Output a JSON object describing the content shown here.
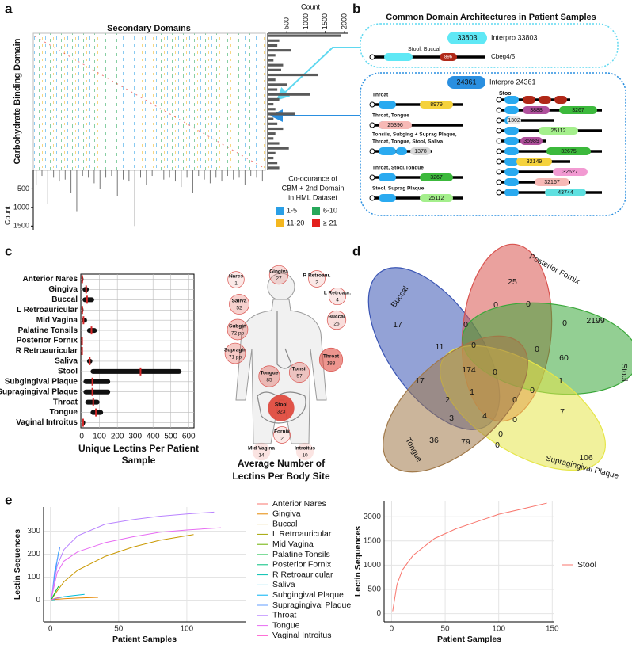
{
  "panel_labels": [
    "a",
    "b",
    "c",
    "d",
    "e"
  ],
  "panel_a": {
    "title": "Secondary Domains",
    "y_label": "Carbohydrate Binding Domain",
    "top_count_label": "Count",
    "top_ticks": [
      500,
      1000,
      1500,
      2000
    ],
    "top_lim": [
      0,
      2100
    ],
    "right_counts": [
      1900,
      300,
      250,
      600,
      200,
      150,
      400,
      350,
      1300,
      200,
      500,
      250,
      1100,
      300,
      150,
      200,
      700,
      150,
      250,
      400,
      200,
      150,
      300,
      550,
      200,
      150,
      250,
      300
    ],
    "bottom_count_label": "Count",
    "bottom_ticks": [
      500,
      1000,
      1500
    ],
    "bottom_lim": [
      0,
      1600
    ],
    "bottom_counts": [
      400,
      150,
      900,
      200,
      300,
      250,
      600,
      1100,
      150,
      200,
      350,
      500,
      200,
      150,
      700,
      250,
      300,
      1500,
      200,
      400,
      150,
      800,
      250,
      200,
      300,
      450,
      200,
      600,
      150,
      250,
      350,
      200,
      300,
      150,
      250,
      200,
      400,
      150,
      200,
      300
    ],
    "legend_title_lines": [
      "Co-ocurance of",
      "CBM + 2nd Domain",
      "in HML Dataset"
    ],
    "legend": [
      {
        "label": "1-5",
        "color": "#2a9fe6"
      },
      {
        "label": "6-10",
        "color": "#27a85a"
      },
      {
        "label": "11-20",
        "color": "#f4b71f"
      },
      {
        "label": "≥ 21",
        "color": "#e3201c"
      }
    ]
  },
  "panel_b": {
    "title": "Common Domain Architectures in Patient Samples",
    "group1": {
      "id": "33803",
      "name": "Interpro 33803",
      "sites": "Stool, Buccal",
      "domain": "896",
      "gene": "Cbeg4/5"
    },
    "group2": {
      "id": "24361",
      "name": "Interpro 24361",
      "left": [
        {
          "sites": [
            "Throat"
          ],
          "domain": "8979",
          "color": "#f5d23c"
        },
        {
          "sites": [
            "Throat, Tongue"
          ],
          "domain": "25396",
          "color": "#f7b9b6"
        },
        {
          "sites": [
            "Tonsils, Subging + Suprag Plaque,",
            "Throat, Tongue, Stool, Saliva"
          ],
          "domain": "1378",
          "color": "#d9d9d9"
        },
        {
          "sites": [
            "Throat, Stool,Tongue"
          ],
          "domain": "3267",
          "color": "#3cb93c"
        },
        {
          "sites": [
            "Stool, Suprag Plaque"
          ],
          "domain": "25112",
          "color": "#a4ef8c"
        }
      ],
      "right_title": "Stool",
      "right": [
        {
          "domain": "3888",
          "color": "#b0509c"
        },
        {
          "domain": "3267",
          "color": "#3cb93c"
        },
        {
          "domain": "1302",
          "color": "#e8e8e8"
        },
        {
          "domain": "25112",
          "color": "#a4ef8c"
        },
        {
          "domain": "35989",
          "color": "#b0509c"
        },
        {
          "domain": "32675",
          "color": "#3cb93c"
        },
        {
          "domain": "32149",
          "color": "#f5d23c"
        },
        {
          "domain": "32627",
          "color": "#f29ad2"
        },
        {
          "domain": "32167",
          "color": "#f7b9b6"
        },
        {
          "domain": "43744",
          "color": "#5fe0e0"
        }
      ]
    }
  },
  "body_map": {
    "caption_lines": [
      "Average Number of",
      "Lectins Per Body Site"
    ],
    "sites": [
      "Nares",
      "Gingiva",
      "R Retroaur.",
      "L Retroaur.",
      "Saliva",
      "Buccal",
      "Subgin",
      "Supragin",
      "Throat",
      "Tongue",
      "Tonsil",
      "Stool",
      "Fornix",
      "Mid Vagina",
      "Introitus"
    ],
    "values": [
      1,
      27,
      2,
      4,
      52,
      26,
      72,
      71,
      183,
      85,
      57,
      323,
      2,
      14,
      10
    ],
    "value_labels": [
      "1",
      "27",
      "2",
      "4",
      "52",
      "26",
      "72 pp",
      "71 pp",
      "183",
      "85",
      "57",
      "323",
      "2",
      "14",
      "10"
    ]
  },
  "venn": {
    "sets": [
      "Buccal",
      "Posterior Fornix",
      "Stool",
      "Supragingival Plaque",
      "Tongue"
    ],
    "colors": [
      "#3a55b4",
      "#d9534f",
      "#3aa83a",
      "#e6e64a",
      "#a07848"
    ],
    "regions": [
      25,
      17,
      2199,
      106,
      36,
      0,
      0,
      0,
      0,
      11,
      0,
      174,
      0,
      60,
      17,
      0,
      0,
      1,
      2,
      1,
      0,
      7,
      3,
      4,
      0,
      79,
      0,
      0
    ]
  },
  "chart_data": [
    {
      "type": "strip",
      "categories": [
        "Anterior Nares",
        "Gingiva",
        "Buccal",
        "L Retroauricular",
        "Mid Vagina",
        "Palatine Tonsils",
        "Posterior Fornix",
        "R Retroauricular",
        "Saliva",
        "Stool",
        "Subgingival Plaque",
        "Supragingival Plaque",
        "Throat",
        "Tongue",
        "Vaginal Introitus"
      ],
      "values": [
        3,
        25,
        30,
        3,
        10,
        55,
        2,
        2,
        45,
        330,
        60,
        60,
        65,
        80,
        8
      ],
      "min": [
        0,
        5,
        5,
        0,
        0,
        30,
        0,
        0,
        30,
        50,
        10,
        10,
        20,
        50,
        0
      ],
      "max": [
        10,
        40,
        70,
        10,
        30,
        85,
        5,
        5,
        60,
        560,
        160,
        160,
        100,
        120,
        20
      ],
      "xlim": [
        -5,
        630
      ],
      "xticks": [
        0,
        100,
        200,
        300,
        400,
        500,
        600
      ],
      "x_label_lines": [
        "Unique Lectins Per Patient",
        "Sample"
      ],
      "color": "#d62728",
      "grid": true
    },
    {
      "type": "line",
      "x_label": "Patient Samples",
      "y_label": "Lectin Sequences",
      "xlim": [
        -5,
        143
      ],
      "ylim": [
        -95,
        405
      ],
      "xticks": [
        0,
        50,
        100
      ],
      "yticks": [
        0,
        100,
        200,
        300
      ],
      "grid": true,
      "series": [
        {
          "name": "Anterior Nares",
          "color": "#f8766d",
          "x": [
            1,
            3
          ],
          "values": [
            1,
            2
          ]
        },
        {
          "name": "Gingiva",
          "color": "#e58700",
          "x": [
            1,
            10,
            20,
            35
          ],
          "values": [
            2,
            6,
            9,
            12
          ]
        },
        {
          "name": "Buccal",
          "color": "#c99800",
          "x": [
            1,
            5,
            10,
            20,
            40,
            60,
            80,
            105
          ],
          "values": [
            5,
            40,
            80,
            130,
            190,
            230,
            260,
            285
          ]
        },
        {
          "name": "L Retroauricular",
          "color": "#a3a500",
          "x": [
            1,
            3
          ],
          "values": [
            1,
            4
          ]
        },
        {
          "name": "Mid Vagina",
          "color": "#6bb100",
          "x": [
            1,
            5,
            8
          ],
          "values": [
            3,
            10,
            14
          ]
        },
        {
          "name": "Palatine Tonsils",
          "color": "#00ba38",
          "x": [
            1,
            4,
            6
          ],
          "values": [
            5,
            40,
            60
          ]
        },
        {
          "name": "Posterior Fornix",
          "color": "#00bf7d",
          "x": [
            1,
            3
          ],
          "values": [
            1,
            2
          ]
        },
        {
          "name": "R Retroauricular",
          "color": "#00c0af",
          "x": [
            1,
            3
          ],
          "values": [
            1,
            2
          ]
        },
        {
          "name": "Saliva",
          "color": "#00bcd8",
          "x": [
            1,
            10,
            25
          ],
          "values": [
            3,
            15,
            25
          ]
        },
        {
          "name": "Subgingival Plaque",
          "color": "#00b0f6",
          "x": [
            1,
            3,
            6
          ],
          "values": [
            10,
            100,
            210
          ]
        },
        {
          "name": "Supragingival Plaque",
          "color": "#619cff",
          "x": [
            1,
            3,
            7
          ],
          "values": [
            10,
            120,
            230
          ]
        },
        {
          "name": "Throat",
          "color": "#b983ff",
          "x": [
            1,
            5,
            10,
            20,
            40,
            60,
            80,
            100,
            120
          ],
          "values": [
            20,
            150,
            220,
            280,
            330,
            350,
            365,
            375,
            383
          ]
        },
        {
          "name": "Tongue",
          "color": "#e76bf3",
          "x": [
            1,
            5,
            10,
            20,
            40,
            60,
            80,
            100,
            125
          ],
          "values": [
            15,
            120,
            170,
            210,
            250,
            275,
            295,
            305,
            315
          ]
        },
        {
          "name": "Vaginal Introitus",
          "color": "#fd61d1",
          "x": [
            1,
            4,
            7
          ],
          "values": [
            2,
            8,
            10
          ]
        }
      ]
    },
    {
      "type": "line",
      "x_label": "Patient Samples",
      "y_label": "Lectin Sequences",
      "xlim": [
        -7,
        152
      ],
      "ylim": [
        -170,
        2330
      ],
      "xticks": [
        0,
        50,
        100,
        150
      ],
      "yticks": [
        0,
        500,
        1000,
        1500,
        2000
      ],
      "grid": true,
      "series": [
        {
          "name": "Stool",
          "color": "#f8766d",
          "x": [
            1,
            5,
            10,
            20,
            40,
            60,
            80,
            100,
            120,
            145
          ],
          "values": [
            50,
            600,
            900,
            1200,
            1550,
            1750,
            1900,
            2050,
            2150,
            2280
          ]
        }
      ]
    }
  ]
}
